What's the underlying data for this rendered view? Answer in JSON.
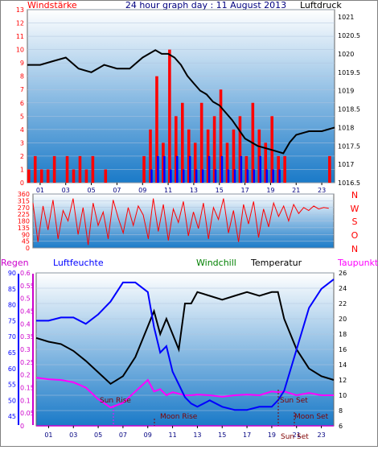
{
  "header": {
    "left_title": "Windstärke",
    "center_title": "24 hour graph day : 11 August 2013",
    "right_title": "Luftdruck"
  },
  "colors": {
    "wind": "#ff0000",
    "gust": "#0000ff",
    "pressure": "#000000",
    "direction": "#ff0000",
    "regen": "#cc00cc",
    "luftfeuchte": "#0000ff",
    "windchill": "#008000",
    "temperatur": "#000000",
    "taupunkt": "#ff00ff",
    "plot_top": "#ffffff",
    "plot_bottom": "#1a7ac8"
  },
  "direction_panel": {
    "compass": [
      "N",
      "W",
      "S",
      "O",
      "N"
    ]
  },
  "bottom_panel": {
    "legend": {
      "regen": "Regen",
      "luftfeuchte": "Luftfeuchte",
      "windchill": "Windchill",
      "temperatur": "Temperatur",
      "taupunkt": "Taupunkt"
    },
    "annotations": {
      "sun_rise": "Sun Rise",
      "moon_rise": "Moon Rise",
      "sun_set": "Sun Set",
      "moon_set": "Moon Set",
      "sun_set_axis": "Sun Set"
    }
  },
  "chart_data": [
    {
      "type": "line",
      "name": "wind_pressure",
      "x_ticks": [
        "01",
        "03",
        "05",
        "07",
        "09",
        "11",
        "13",
        "15",
        "17",
        "19",
        "21",
        "23"
      ],
      "y_left_ticks": [
        "0",
        "1",
        "2",
        "3",
        "4",
        "5",
        "6",
        "7",
        "8",
        "9",
        "10",
        "11",
        "12",
        "13"
      ],
      "y_right_ticks": [
        "1016.5",
        "1017",
        "1017.5",
        "1018",
        "1018.5",
        "1019",
        "1019.5",
        "1020",
        "1020.5",
        "1021"
      ],
      "ylim_left": [
        0,
        13
      ],
      "ylim_right": [
        1016.5,
        1021.2
      ],
      "xlim": [
        0,
        24
      ],
      "series": [
        {
          "name": "Windstärke",
          "x": [
            0,
            0.5,
            1,
            1.5,
            2,
            2.5,
            3,
            3.5,
            4,
            4.5,
            5,
            5.5,
            6,
            6.5,
            7,
            7.5,
            8,
            8.5,
            9,
            9.5,
            10,
            10.5,
            11,
            11.5,
            12,
            12.5,
            13,
            13.5,
            14,
            14.5,
            15,
            15.5,
            16,
            16.5,
            17,
            17.5,
            18,
            18.5,
            19,
            19.5,
            20,
            20.5,
            21,
            21.5,
            22,
            22.5,
            23,
            23.5
          ],
          "values": [
            1,
            2,
            1,
            1,
            2,
            0,
            2,
            1,
            2,
            1,
            2,
            0,
            1,
            0,
            0,
            0,
            0,
            0,
            2,
            4,
            8,
            3,
            10,
            5,
            6,
            4,
            3,
            6,
            4,
            5,
            7,
            3,
            4,
            5,
            2,
            6,
            4,
            3,
            5,
            2,
            2,
            0,
            0,
            0,
            0,
            0,
            0,
            2
          ]
        },
        {
          "name": "Böen",
          "x": [
            9.5,
            10,
            10.5,
            11,
            11.5,
            12,
            12.5,
            13,
            13.5,
            14,
            14.5,
            15,
            15.5,
            16,
            16.5,
            17,
            17.5,
            18,
            18.5,
            19,
            19.5
          ],
          "values": [
            1,
            2,
            2,
            1,
            2,
            1,
            2,
            1,
            1,
            2,
            1,
            2,
            1,
            1,
            2,
            1,
            1,
            2,
            1,
            1,
            1
          ]
        },
        {
          "name": "Luftdruck",
          "x": [
            0,
            1,
            2,
            3,
            4,
            5,
            6,
            7,
            8,
            9,
            9.5,
            10,
            10.5,
            11,
            11.5,
            12,
            12.5,
            13,
            13.5,
            14,
            14.5,
            15,
            16,
            17,
            18,
            19,
            20,
            20.5,
            21,
            22,
            23,
            24
          ],
          "values": [
            1019.7,
            1019.7,
            1019.8,
            1019.9,
            1019.6,
            1019.5,
            1019.7,
            1019.6,
            1019.6,
            1019.9,
            1020.0,
            1020.1,
            1020.0,
            1020.0,
            1019.9,
            1019.7,
            1019.4,
            1019.2,
            1019.0,
            1018.9,
            1018.7,
            1018.6,
            1018.2,
            1017.7,
            1017.5,
            1017.4,
            1017.3,
            1017.6,
            1017.8,
            1017.9,
            1017.9,
            1018.0
          ]
        }
      ]
    },
    {
      "type": "line",
      "name": "wind_direction",
      "x_ticks": [
        "01",
        "03",
        "05",
        "07",
        "09",
        "11",
        "13",
        "15",
        "17",
        "19",
        "21",
        "23"
      ],
      "y_ticks": [
        "0",
        "45",
        "90",
        "135",
        "180",
        "225",
        "270",
        "315",
        "360"
      ],
      "ylim": [
        0,
        360
      ],
      "xlim": [
        0,
        24
      ],
      "series": [
        {
          "name": "Windrichtung",
          "x": [
            0,
            0.4,
            0.8,
            1.2,
            1.6,
            2,
            2.4,
            2.8,
            3.2,
            3.6,
            4,
            4.4,
            4.8,
            5.2,
            5.6,
            6,
            6.4,
            6.8,
            7.2,
            7.6,
            8,
            8.4,
            8.8,
            9.2,
            9.6,
            10,
            10.4,
            10.8,
            11.2,
            11.6,
            12,
            12.4,
            12.8,
            13.2,
            13.6,
            14,
            14.4,
            14.8,
            15.2,
            15.6,
            16,
            16.4,
            16.8,
            17.2,
            17.6,
            18,
            18.4,
            18.8,
            19.2,
            19.6,
            20,
            20.4,
            20.8,
            21.2,
            21.6,
            22,
            22.4,
            22.8,
            23.2,
            23.6
          ],
          "values": [
            300,
            40,
            280,
            120,
            320,
            60,
            250,
            180,
            330,
            90,
            270,
            20,
            300,
            150,
            240,
            60,
            320,
            200,
            100,
            270,
            150,
            280,
            220,
            60,
            330,
            110,
            290,
            50,
            260,
            170,
            310,
            80,
            240,
            130,
            300,
            60,
            270,
            190,
            330,
            100,
            250,
            40,
            290,
            160,
            310,
            70,
            260,
            140,
            300,
            210,
            280,
            180,
            290,
            230,
            270,
            250,
            280,
            260,
            270,
            265
          ]
        }
      ]
    },
    {
      "type": "line",
      "name": "temperature_humidity",
      "x_ticks": [
        "01",
        "03",
        "05",
        "07",
        "09",
        "11",
        "13",
        "15",
        "17",
        "19",
        "21",
        "23"
      ],
      "y_regen_ticks": [
        "0",
        "0.05",
        "0.1",
        "0.15",
        "0.2",
        "0.25",
        "0.3",
        "0.35",
        "0.4",
        "0.45",
        "0.5",
        "0.55",
        "0.6"
      ],
      "y_humidity_ticks": [
        "45",
        "50",
        "55",
        "60",
        "65",
        "70",
        "75",
        "80",
        "85",
        "90"
      ],
      "y_temp_ticks": [
        "6",
        "8",
        "10",
        "12",
        "14",
        "16",
        "18",
        "20",
        "22",
        "24",
        "26"
      ],
      "ylim_regen": [
        0,
        0.6
      ],
      "ylim_humidity": [
        42,
        90
      ],
      "ylim_temp": [
        6,
        26
      ],
      "xlim": [
        0,
        24
      ],
      "series": [
        {
          "name": "Luftfeuchte",
          "x": [
            0,
            1,
            2,
            3,
            4,
            5,
            6,
            7,
            8,
            9,
            9.5,
            10,
            10.5,
            11,
            11.5,
            12,
            12.5,
            13,
            14,
            15,
            16,
            17,
            18,
            19,
            19.5,
            20,
            21,
            22,
            23,
            24
          ],
          "values": [
            75,
            75,
            76,
            76,
            74,
            77,
            81,
            87,
            87,
            84,
            73,
            65,
            67,
            59,
            55,
            51,
            49,
            48,
            50,
            48,
            47,
            47,
            48,
            48,
            50,
            53,
            66,
            79,
            85,
            88
          ]
        },
        {
          "name": "Temperatur",
          "x": [
            0,
            1,
            2,
            3,
            4,
            5,
            6,
            7,
            8,
            9,
            9.5,
            10,
            10.5,
            11,
            11.5,
            12,
            12.5,
            13,
            14,
            15,
            16,
            17,
            18,
            19,
            19.5,
            20,
            21,
            22,
            23,
            24
          ],
          "values": [
            17.5,
            17,
            16.7,
            15.8,
            14.5,
            13,
            11.5,
            12.5,
            15,
            19,
            21,
            18,
            20,
            18,
            16,
            22,
            22,
            23.5,
            23,
            22.5,
            23,
            23.5,
            23,
            23.5,
            23.5,
            20,
            16,
            13.5,
            12.5,
            12
          ]
        },
        {
          "name": "Taupunkt",
          "x": [
            0,
            1,
            2,
            3,
            4,
            5,
            6,
            7,
            8,
            9,
            9.5,
            10,
            10.5,
            11,
            11.5,
            12,
            12.5,
            13,
            14,
            15,
            16,
            17,
            18,
            19,
            19.5,
            20,
            21,
            22,
            23,
            24
          ],
          "values": [
            12.3,
            12.1,
            12,
            11.7,
            11,
            9.5,
            8.4,
            9,
            10.5,
            12,
            10.5,
            10.8,
            10,
            10.4,
            10.2,
            10,
            10,
            10.1,
            10,
            9.8,
            10,
            10.1,
            10,
            10.5,
            10.4,
            10.5,
            10,
            10.3,
            10,
            10
          ]
        },
        {
          "name": "Regen",
          "x": [
            0,
            24
          ],
          "values": [
            0,
            0
          ]
        }
      ]
    }
  ]
}
